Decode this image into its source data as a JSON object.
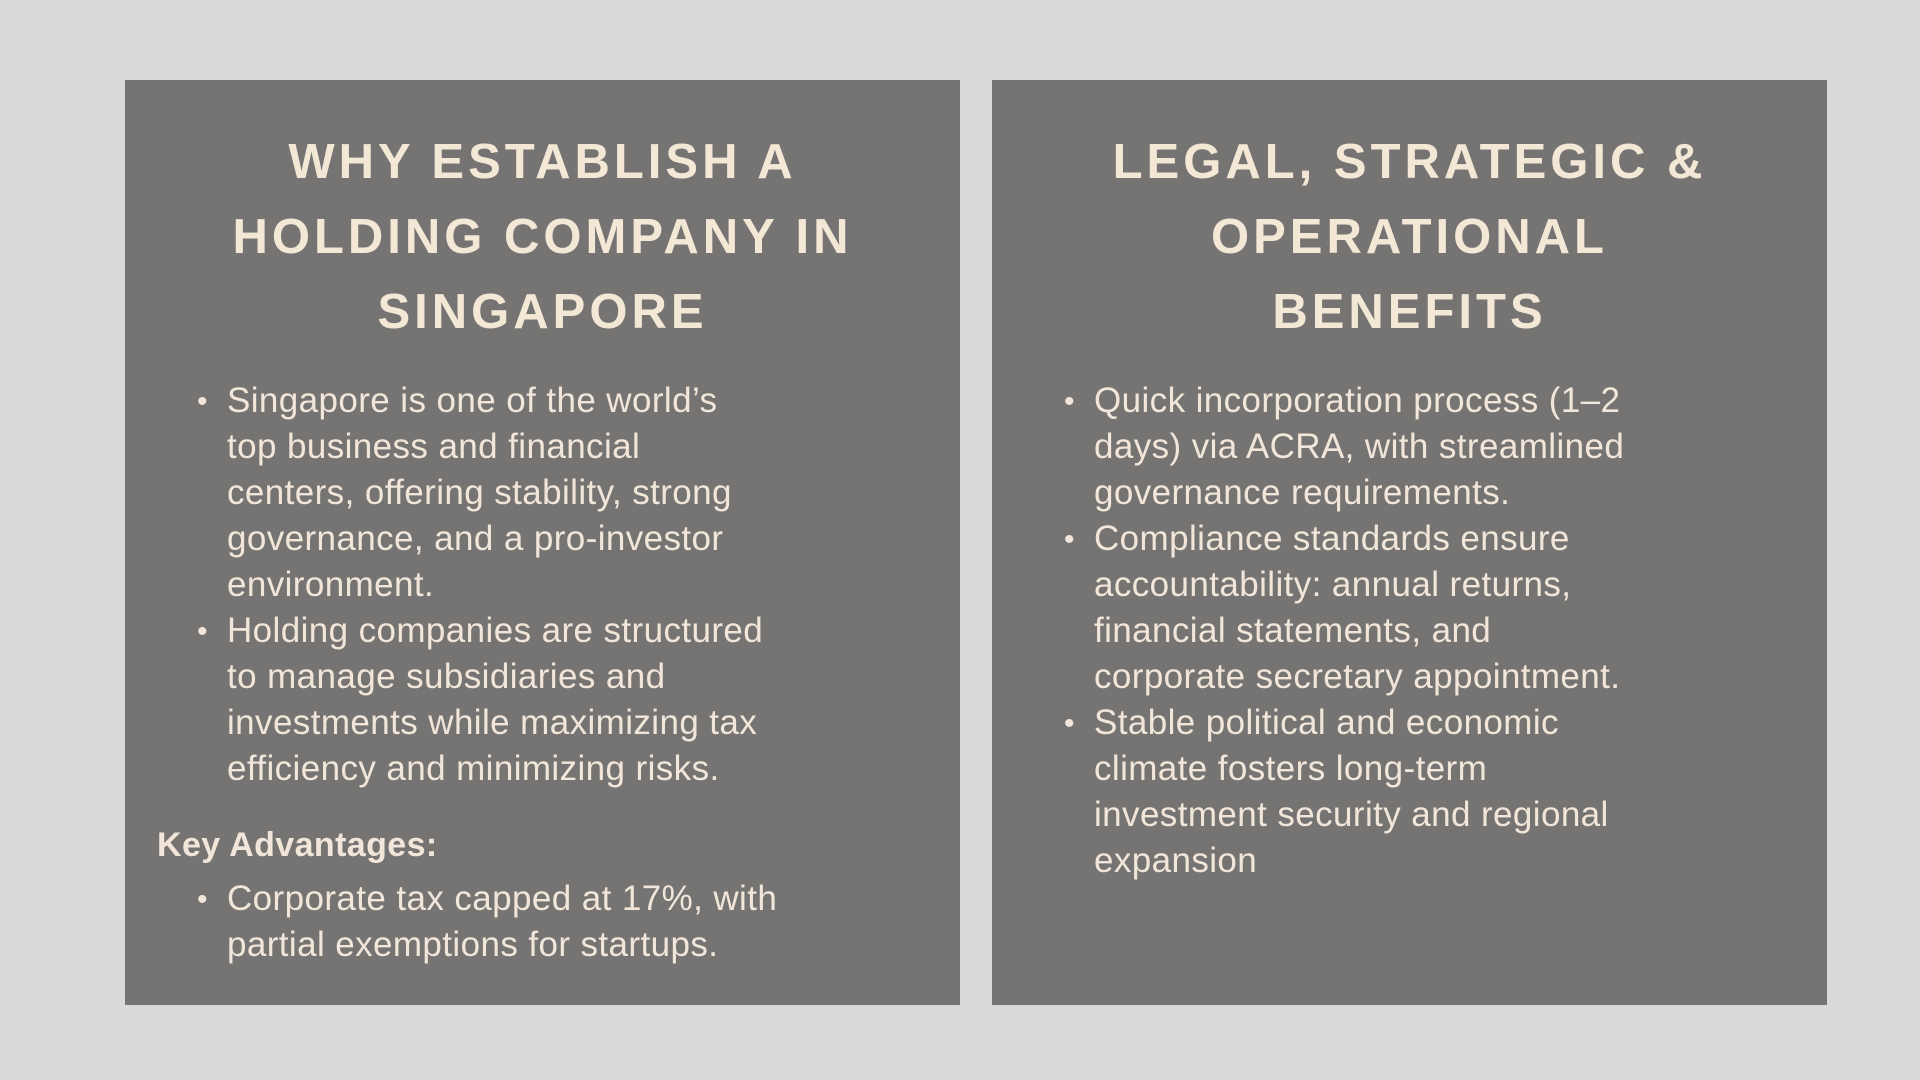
{
  "colors": {
    "page_background": "#d9d9d9",
    "panel_background": "#757473",
    "body_text": "#f1e6d9",
    "title_text": "#f3e7d6"
  },
  "panels": [
    {
      "title": "WHY ESTABLISH A\nHOLDING COMPANY IN\nSINGAPORE",
      "bullets": [
        "Singapore is one of the world’s\ntop business and financial\ncenters, offering stability, strong\ngovernance, and a pro-investor\nenvironment.",
        "Holding companies are structured\nto manage subsidiaries and\ninvestments while maximizing tax\nefficiency and minimizing risks."
      ],
      "subheading": "Key Advantages:",
      "sub_bullets": [
        "Corporate tax capped at 17%, with\npartial exemptions for startups."
      ]
    },
    {
      "title": "LEGAL, STRATEGIC &\nOPERATIONAL\nBENEFITS",
      "bullets": [
        "Quick incorporation process (1–2\ndays) via ACRA, with streamlined\ngovernance requirements.",
        "Compliance standards ensure\naccountability: annual returns,\nfinancial statements, and\ncorporate secretary appointment.",
        "Stable political and economic\nclimate fosters long-term\ninvestment security and regional\nexpansion"
      ]
    }
  ]
}
